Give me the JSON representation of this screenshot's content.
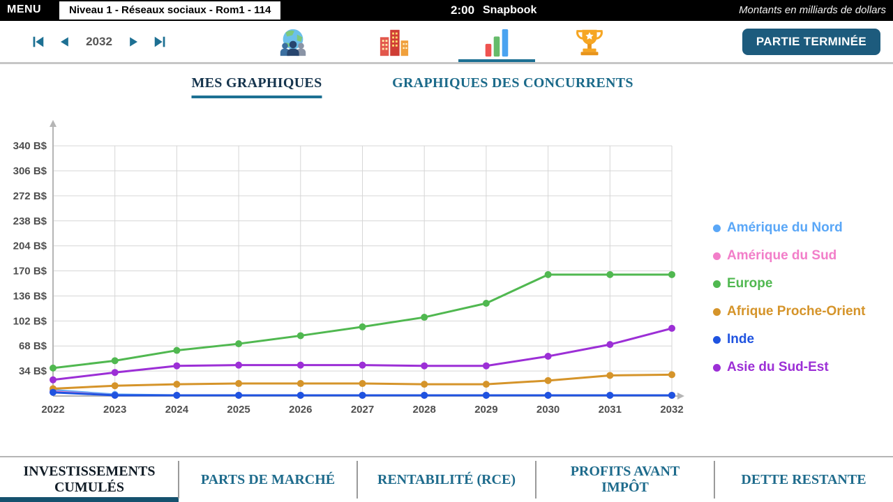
{
  "colors": {
    "accent": "#1d7093",
    "grid": "#d6d6d6",
    "axis": "#b5b5b5",
    "axis_text": "#4f4f4f",
    "finish_button_bg": "#1d5b7d",
    "bottom_active_underline": "#15516e"
  },
  "top_bar": {
    "menu": "MENU",
    "session": "Niveau 1 - Réseaux sociaux - Rom1 - 114",
    "timer": "2:00",
    "brand": "Snapbook",
    "note": "Montants en milliards de dollars"
  },
  "toolbar": {
    "year": "2032",
    "finish_button": "PARTIE TERMINÉE",
    "icons": [
      "world-markets-icon",
      "city-icon",
      "charts-icon",
      "trophy-icon"
    ],
    "selected_icon": "charts-icon"
  },
  "tabs": {
    "mine": "MES GRAPHIQUES",
    "competitors": "GRAPHIQUES DES CONCURRENTS"
  },
  "chart_data": {
    "type": "line",
    "title": "",
    "x": [
      2022,
      2023,
      2024,
      2025,
      2026,
      2027,
      2028,
      2029,
      2030,
      2031,
      2032
    ],
    "yticks": [
      34,
      68,
      102,
      136,
      170,
      204,
      238,
      272,
      306,
      340
    ],
    "ytick_suffix": " B$",
    "ylim": [
      0,
      360
    ],
    "grid": true,
    "legend_position": "right",
    "series": [
      {
        "name": "Amérique du Nord",
        "color": "#5aa7f7",
        "values": [
          8,
          2,
          1,
          1,
          1,
          1,
          1,
          1,
          1,
          1,
          1
        ]
      },
      {
        "name": "Amérique du Sud",
        "color": "#f27ec9",
        "values": [
          6,
          1,
          1,
          1,
          1,
          1,
          1,
          1,
          1,
          1,
          1
        ]
      },
      {
        "name": "Europe",
        "color": "#50b850",
        "values": [
          38,
          48,
          62,
          71,
          82,
          94,
          107,
          126,
          165,
          165,
          165
        ]
      },
      {
        "name": "Afrique Proche-Orient",
        "color": "#d5942a",
        "values": [
          10,
          14,
          16,
          17,
          17,
          17,
          16,
          16,
          21,
          28,
          29
        ]
      },
      {
        "name": "Inde",
        "color": "#1f53e0",
        "values": [
          5,
          1,
          1,
          1,
          1,
          1,
          1,
          1,
          1,
          1,
          1
        ]
      },
      {
        "name": "Asie du Sud-Est",
        "color": "#9c2fd6",
        "values": [
          22,
          32,
          41,
          42,
          42,
          42,
          41,
          41,
          54,
          70,
          92
        ]
      }
    ]
  },
  "bottom_tabs": [
    {
      "label": "INVESTISSEMENTS CUMULÉS",
      "active": true
    },
    {
      "label": "PARTS DE MARCHÉ",
      "active": false
    },
    {
      "label": "RENTABILITÉ (RCE)",
      "active": false
    },
    {
      "label": "PROFITS AVANT IMPÔT",
      "active": false
    },
    {
      "label": "DETTE RESTANTE",
      "active": false
    }
  ]
}
